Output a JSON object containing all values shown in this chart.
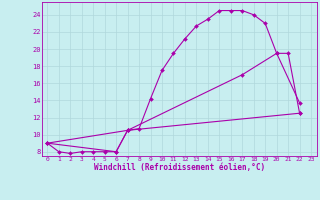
{
  "background_color": "#c8eef0",
  "grid_color": "#b0d8dc",
  "line_color": "#aa00aa",
  "xlabel": "Windchill (Refroidissement éolien,°C)",
  "xlim": [
    -0.5,
    23.5
  ],
  "ylim": [
    7.5,
    25.5
  ],
  "yticks": [
    8,
    10,
    12,
    14,
    16,
    18,
    20,
    22,
    24
  ],
  "xticks": [
    0,
    1,
    2,
    3,
    4,
    5,
    6,
    7,
    8,
    9,
    10,
    11,
    12,
    13,
    14,
    15,
    16,
    17,
    18,
    19,
    20,
    21,
    22,
    23
  ],
  "line1_x": [
    0,
    1,
    2,
    3,
    4,
    5,
    6,
    7,
    8,
    9,
    10,
    11,
    12,
    13,
    14,
    15,
    16,
    17,
    18,
    19,
    20,
    21,
    22
  ],
  "line1_y": [
    9.0,
    8.0,
    7.8,
    8.0,
    8.0,
    8.0,
    8.0,
    10.5,
    10.7,
    14.2,
    17.5,
    19.5,
    21.2,
    22.7,
    23.5,
    24.5,
    24.5,
    24.5,
    24.0,
    23.0,
    19.5,
    19.5,
    12.5
  ],
  "line2_x": [
    0,
    6,
    7,
    22
  ],
  "line2_y": [
    9.0,
    8.0,
    10.5,
    12.5
  ],
  "line3_x": [
    0,
    7,
    17,
    20,
    22
  ],
  "line3_y": [
    9.0,
    10.5,
    17.0,
    19.5,
    13.7
  ]
}
